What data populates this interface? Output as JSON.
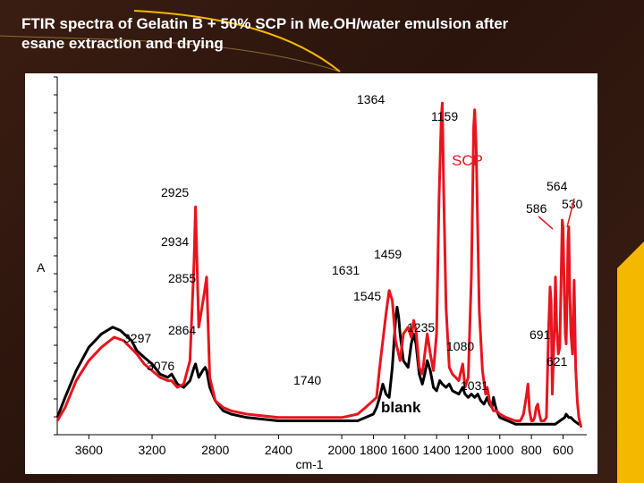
{
  "slide": {
    "title_line1": "FTIR spectra of Gelatin B + 50% SCP in Me.OH/water emulsion after",
    "title_line2": "esane extraction and drying"
  },
  "colors": {
    "scp": "#e8141e",
    "blank": "#000000",
    "background": "#2f170e",
    "accent": "#f5b800"
  },
  "chart_data": {
    "type": "line",
    "title": "",
    "xlabel": "cm-1",
    "ylabel": "A",
    "xlim": [
      3800,
      450
    ],
    "ylim": [
      0,
      1
    ],
    "x_ticks": [
      3600,
      3200,
      2800,
      2400,
      2000,
      1800,
      1600,
      1400,
      1200,
      1000,
      800,
      600
    ],
    "x_tick_labels": [
      "3600",
      "3200",
      "2800",
      "2400",
      "2000",
      "1800",
      "1600",
      "1400",
      "1200",
      "1000",
      "800",
      "600"
    ],
    "series": [
      {
        "name": "SCP",
        "label": "SCP",
        "color": "#e8141e",
        "points": [
          [
            3800,
            0.02
          ],
          [
            3750,
            0.06
          ],
          [
            3680,
            0.14
          ],
          [
            3600,
            0.2
          ],
          [
            3520,
            0.24
          ],
          [
            3440,
            0.27
          ],
          [
            3380,
            0.26
          ],
          [
            3297,
            0.22
          ],
          [
            3250,
            0.19
          ],
          [
            3200,
            0.17
          ],
          [
            3150,
            0.15
          ],
          [
            3100,
            0.14
          ],
          [
            3076,
            0.14
          ],
          [
            3040,
            0.12
          ],
          [
            3000,
            0.13
          ],
          [
            2960,
            0.2
          ],
          [
            2934,
            0.5
          ],
          [
            2925,
            0.66
          ],
          [
            2905,
            0.3
          ],
          [
            2870,
            0.4
          ],
          [
            2855,
            0.45
          ],
          [
            2835,
            0.15
          ],
          [
            2800,
            0.08
          ],
          [
            2750,
            0.06
          ],
          [
            2700,
            0.05
          ],
          [
            2600,
            0.04
          ],
          [
            2400,
            0.03
          ],
          [
            2200,
            0.03
          ],
          [
            2000,
            0.03
          ],
          [
            1900,
            0.04
          ],
          [
            1850,
            0.06
          ],
          [
            1780,
            0.09
          ],
          [
            1760,
            0.18
          ],
          [
            1740,
            0.26
          ],
          [
            1720,
            0.34
          ],
          [
            1700,
            0.41
          ],
          [
            1680,
            0.38
          ],
          [
            1660,
            0.26
          ],
          [
            1631,
            0.2
          ],
          [
            1610,
            0.28
          ],
          [
            1580,
            0.3
          ],
          [
            1560,
            0.27
          ],
          [
            1545,
            0.32
          ],
          [
            1530,
            0.29
          ],
          [
            1510,
            0.18
          ],
          [
            1490,
            0.16
          ],
          [
            1475,
            0.22
          ],
          [
            1459,
            0.28
          ],
          [
            1440,
            0.22
          ],
          [
            1420,
            0.17
          ],
          [
            1400,
            0.28
          ],
          [
            1385,
            0.68
          ],
          [
            1370,
            0.93
          ],
          [
            1364,
            0.97
          ],
          [
            1355,
            0.7
          ],
          [
            1340,
            0.36
          ],
          [
            1320,
            0.18
          ],
          [
            1300,
            0.16
          ],
          [
            1260,
            0.14
          ],
          [
            1235,
            0.19
          ],
          [
            1220,
            0.12
          ],
          [
            1200,
            0.15
          ],
          [
            1180,
            0.45
          ],
          [
            1165,
            0.9
          ],
          [
            1159,
            0.95
          ],
          [
            1150,
            0.85
          ],
          [
            1130,
            0.35
          ],
          [
            1110,
            0.17
          ],
          [
            1090,
            0.1
          ],
          [
            1080,
            0.12
          ],
          [
            1065,
            0.08
          ],
          [
            1050,
            0.06
          ],
          [
            1040,
            0.05
          ],
          [
            1031,
            0.05
          ],
          [
            1020,
            0.05
          ],
          [
            1000,
            0.04
          ],
          [
            960,
            0.03
          ],
          [
            900,
            0.02
          ],
          [
            870,
            0.02
          ],
          [
            850,
            0.04
          ],
          [
            840,
            0.07
          ],
          [
            830,
            0.1
          ],
          [
            822,
            0.13
          ],
          [
            812,
            0.05
          ],
          [
            800,
            0.02
          ],
          [
            790,
            0.02
          ],
          [
            780,
            0.03
          ],
          [
            770,
            0.06
          ],
          [
            760,
            0.07
          ],
          [
            750,
            0.04
          ],
          [
            740,
            0.02
          ],
          [
            720,
            0.02
          ],
          [
            705,
            0.03
          ],
          [
            691,
            0.3
          ],
          [
            682,
            0.42
          ],
          [
            676,
            0.38
          ],
          [
            668,
            0.1
          ],
          [
            655,
            0.3
          ],
          [
            648,
            0.45
          ],
          [
            640,
            0.3
          ],
          [
            630,
            0.22
          ],
          [
            621,
            0.24
          ],
          [
            612,
            0.45
          ],
          [
            605,
            0.62
          ],
          [
            600,
            0.6
          ],
          [
            592,
            0.4
          ],
          [
            586,
            0.28
          ],
          [
            580,
            0.25
          ],
          [
            574,
            0.4
          ],
          [
            569,
            0.56
          ],
          [
            564,
            0.6
          ],
          [
            558,
            0.42
          ],
          [
            550,
            0.28
          ],
          [
            540,
            0.22
          ],
          [
            535,
            0.35
          ],
          [
            530,
            0.44
          ],
          [
            520,
            0.18
          ],
          [
            510,
            0.08
          ],
          [
            500,
            0.03
          ],
          [
            485,
            0.0
          ]
        ]
      },
      {
        "name": "blank",
        "label": "blank",
        "color": "#000000",
        "points": [
          [
            3800,
            0.03
          ],
          [
            3750,
            0.09
          ],
          [
            3680,
            0.17
          ],
          [
            3600,
            0.24
          ],
          [
            3520,
            0.28
          ],
          [
            3450,
            0.3
          ],
          [
            3400,
            0.29
          ],
          [
            3330,
            0.26
          ],
          [
            3297,
            0.23
          ],
          [
            3250,
            0.21
          ],
          [
            3200,
            0.19
          ],
          [
            3150,
            0.16
          ],
          [
            3100,
            0.15
          ],
          [
            3076,
            0.16
          ],
          [
            3040,
            0.13
          ],
          [
            3000,
            0.12
          ],
          [
            2960,
            0.14
          ],
          [
            2934,
            0.18
          ],
          [
            2925,
            0.19
          ],
          [
            2905,
            0.15
          ],
          [
            2880,
            0.17
          ],
          [
            2864,
            0.18
          ],
          [
            2855,
            0.17
          ],
          [
            2835,
            0.12
          ],
          [
            2800,
            0.08
          ],
          [
            2750,
            0.05
          ],
          [
            2700,
            0.04
          ],
          [
            2600,
            0.03
          ],
          [
            2400,
            0.02
          ],
          [
            2200,
            0.02
          ],
          [
            2000,
            0.02
          ],
          [
            1900,
            0.02
          ],
          [
            1850,
            0.03
          ],
          [
            1800,
            0.04
          ],
          [
            1780,
            0.06
          ],
          [
            1760,
            0.09
          ],
          [
            1740,
            0.13
          ],
          [
            1720,
            0.1
          ],
          [
            1700,
            0.09
          ],
          [
            1680,
            0.18
          ],
          [
            1660,
            0.32
          ],
          [
            1650,
            0.36
          ],
          [
            1640,
            0.33
          ],
          [
            1631,
            0.28
          ],
          [
            1610,
            0.2
          ],
          [
            1580,
            0.18
          ],
          [
            1560,
            0.25
          ],
          [
            1545,
            0.28
          ],
          [
            1530,
            0.25
          ],
          [
            1510,
            0.16
          ],
          [
            1490,
            0.13
          ],
          [
            1475,
            0.16
          ],
          [
            1459,
            0.2
          ],
          [
            1440,
            0.17
          ],
          [
            1420,
            0.12
          ],
          [
            1400,
            0.11
          ],
          [
            1380,
            0.14
          ],
          [
            1364,
            0.13
          ],
          [
            1340,
            0.12
          ],
          [
            1320,
            0.13
          ],
          [
            1300,
            0.11
          ],
          [
            1260,
            0.1
          ],
          [
            1235,
            0.12
          ],
          [
            1220,
            0.1
          ],
          [
            1200,
            0.09
          ],
          [
            1180,
            0.1
          ],
          [
            1159,
            0.09
          ],
          [
            1140,
            0.1
          ],
          [
            1120,
            0.08
          ],
          [
            1100,
            0.07
          ],
          [
            1080,
            0.09
          ],
          [
            1065,
            0.07
          ],
          [
            1050,
            0.06
          ],
          [
            1040,
            0.09
          ],
          [
            1031,
            0.07
          ],
          [
            1020,
            0.05
          ],
          [
            1000,
            0.03
          ],
          [
            950,
            0.02
          ],
          [
            900,
            0.01
          ],
          [
            800,
            0.01
          ],
          [
            700,
            0.01
          ],
          [
            650,
            0.01
          ],
          [
            620,
            0.02
          ],
          [
            590,
            0.03
          ],
          [
            580,
            0.04
          ],
          [
            564,
            0.03
          ],
          [
            550,
            0.03
          ],
          [
            530,
            0.02
          ],
          [
            500,
            0.01
          ],
          [
            485,
            0.01
          ]
        ]
      }
    ],
    "annotations": [
      {
        "text": "1364",
        "x": 1364,
        "series": "SCP"
      },
      {
        "text": "1159",
        "x": 1159,
        "series": "SCP"
      },
      {
        "text": "2925",
        "x": 2925,
        "series": "SCP"
      },
      {
        "text": "564",
        "x": 564,
        "series": "SCP"
      },
      {
        "text": "586",
        "x": 586,
        "series": "SCP"
      },
      {
        "text": "530",
        "x": 530,
        "series": "SCP"
      },
      {
        "text": "2934",
        "x": 2934,
        "series": "SCP"
      },
      {
        "text": "1459",
        "x": 1459,
        "series": "SCP"
      },
      {
        "text": "1631",
        "x": 1631,
        "series": "SCP"
      },
      {
        "text": "2855",
        "x": 2855,
        "series": "SCP"
      },
      {
        "text": "1545",
        "x": 1545,
        "series": "SCP"
      },
      {
        "text": "1235",
        "x": 1235,
        "series": "SCP"
      },
      {
        "text": "3297",
        "x": 3297,
        "series": "blank"
      },
      {
        "text": "2864",
        "x": 2864,
        "series": "blank"
      },
      {
        "text": "691",
        "x": 691,
        "series": "SCP"
      },
      {
        "text": "1080",
        "x": 1080,
        "series": "SCP"
      },
      {
        "text": "3076",
        "x": 3076,
        "series": "blank"
      },
      {
        "text": "621",
        "x": 621,
        "series": "SCP"
      },
      {
        "text": "1740",
        "x": 1740,
        "series": "blank"
      },
      {
        "text": "1031",
        "x": 1031,
        "series": "blank"
      }
    ]
  }
}
